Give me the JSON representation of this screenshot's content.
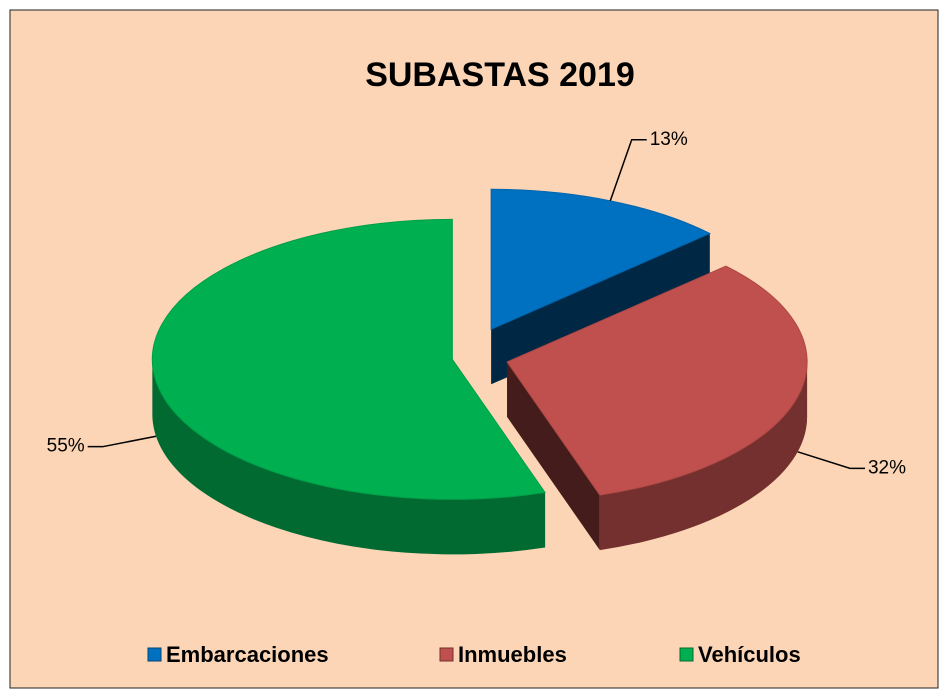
{
  "chart_data": {
    "type": "pie",
    "title": "SUBASTAS 2019",
    "categories": [
      "Embarcaciones",
      "Inmuebles",
      "Vehículos"
    ],
    "values": [
      13,
      32,
      55
    ],
    "value_labels": [
      "13%",
      "32%",
      "55%"
    ],
    "colors": [
      "#0070c0",
      "#c0504d",
      "#00b050"
    ],
    "legend": "bottom"
  }
}
